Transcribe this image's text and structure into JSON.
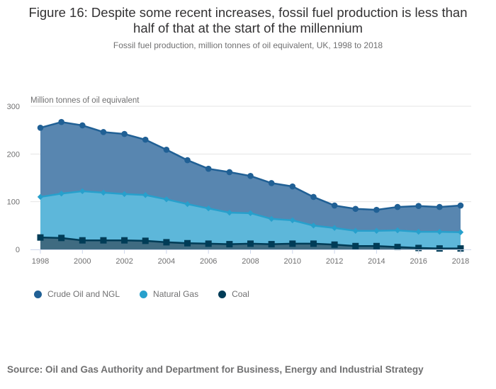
{
  "title_line1": "Figure 16: Despite some recent increases, fossil fuel production is less than",
  "title_line2": "half of that at the start of the millennium",
  "subtitle": "Fossil fuel production, million tonnes of oil equivalent, UK, 1998 to 2018",
  "source": "Source: Oil and Gas Authority and Department for Business, Energy and Industrial Strategy",
  "chart_data": {
    "type": "area",
    "title": "Figure 16: Despite some recent increases, fossil fuel production is less than half of that at the start of the millennium",
    "subtitle": "Fossil fuel production, million tonnes of oil equivalent, UK, 1998 to 2018",
    "xlabel": "",
    "ylabel": "Million tonnes of oil equivalent",
    "x": [
      1998,
      1999,
      2000,
      2001,
      2002,
      2003,
      2004,
      2005,
      2006,
      2007,
      2008,
      2009,
      2010,
      2011,
      2012,
      2013,
      2014,
      2015,
      2016,
      2017,
      2018
    ],
    "xticks": [
      "1998",
      "2000",
      "2002",
      "2004",
      "2006",
      "2008",
      "2010",
      "2012",
      "2014",
      "2016",
      "2018"
    ],
    "yticks": [
      "0",
      "100",
      "200",
      "300"
    ],
    "ylim": [
      0,
      300
    ],
    "grid": true,
    "stacked": false,
    "legend_position": "bottom-left",
    "series": [
      {
        "name": "Crude Oil and NGL",
        "marker": "circle",
        "line_color": "#206095",
        "fill_color": "#5886b0",
        "values": [
          255,
          267,
          260,
          246,
          242,
          230,
          209,
          187,
          169,
          162,
          154,
          139,
          132,
          110,
          92,
          85,
          83,
          89,
          91,
          89,
          92
        ]
      },
      {
        "name": "Natural Gas",
        "marker": "diamond",
        "line_color": "#27a0cc",
        "fill_color": "#5db7da",
        "values": [
          110,
          117,
          122,
          119,
          116,
          114,
          105,
          95,
          86,
          77,
          76,
          64,
          61,
          50,
          45,
          39,
          39,
          40,
          37,
          37,
          36
        ]
      },
      {
        "name": "Coal",
        "marker": "square",
        "line_color": "#003c57",
        "fill_color": "#3f6b81",
        "values": [
          25,
          24,
          19,
          19,
          19,
          18,
          15,
          13,
          12,
          11,
          12,
          11,
          12,
          12,
          10,
          7,
          7,
          5,
          3,
          2,
          2
        ]
      }
    ]
  }
}
